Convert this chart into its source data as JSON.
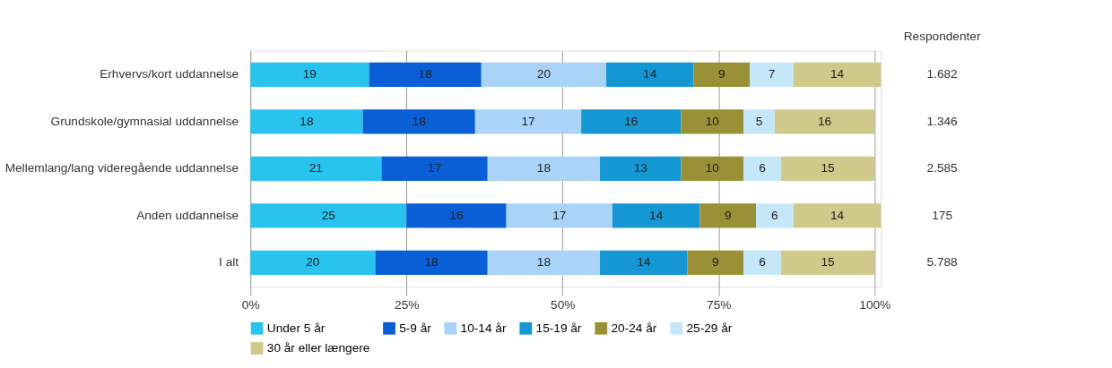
{
  "chart_data": {
    "type": "bar",
    "orientation": "horizontal",
    "stacked": true,
    "data_labels": true,
    "categories": [
      "Erhvervs/kort  uddannelse",
      "Grundskole/gymnasial uddannelse",
      "Mellemlang/lang videregående uddannelse",
      "Anden uddannelse",
      "I alt"
    ],
    "series": [
      {
        "name": "Under 5 år",
        "color": "#29c3f0",
        "values": [
          19,
          18,
          21,
          25,
          20
        ]
      },
      {
        "name": "5-9 år",
        "color": "#0a5fd6",
        "values": [
          18,
          18,
          17,
          16,
          18
        ]
      },
      {
        "name": "10-14 år",
        "color": "#a9d4f7",
        "values": [
          20,
          17,
          18,
          17,
          18
        ]
      },
      {
        "name": "15-19 år",
        "color": "#1597d4",
        "values": [
          14,
          16,
          13,
          14,
          14
        ]
      },
      {
        "name": "20-24 år",
        "color": "#9a9035",
        "values": [
          9,
          10,
          10,
          9,
          9
        ]
      },
      {
        "name": "25-29 år",
        "color": "#c4e8fa",
        "values": [
          7,
          5,
          6,
          6,
          6
        ]
      },
      {
        "name": "30 år eller længere",
        "color": "#cfc98a",
        "values": [
          14,
          16,
          15,
          14,
          15
        ]
      }
    ],
    "xlim": [
      0,
      101
    ],
    "xticks": [
      {
        "value": 0,
        "label": "0%"
      },
      {
        "value": 25,
        "label": "25%"
      },
      {
        "value": 50,
        "label": "50%"
      },
      {
        "value": 75,
        "label": "75%"
      },
      {
        "value": 100,
        "label": "100%"
      }
    ],
    "grid": "x",
    "legend": "bottom",
    "annotations": [
      "Respondenter",
      "1.682",
      "1.346",
      "2.585",
      "175",
      "5.788"
    ]
  }
}
